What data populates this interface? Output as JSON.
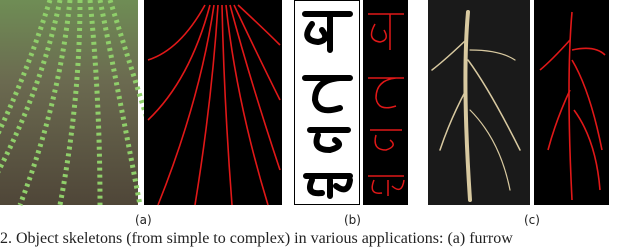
{
  "figure": {
    "labels": [
      "(a)",
      "(b)",
      "(c)"
    ],
    "caption": "2. Object skeletons (from simple to complex) in various applications: (a) furrow"
  }
}
